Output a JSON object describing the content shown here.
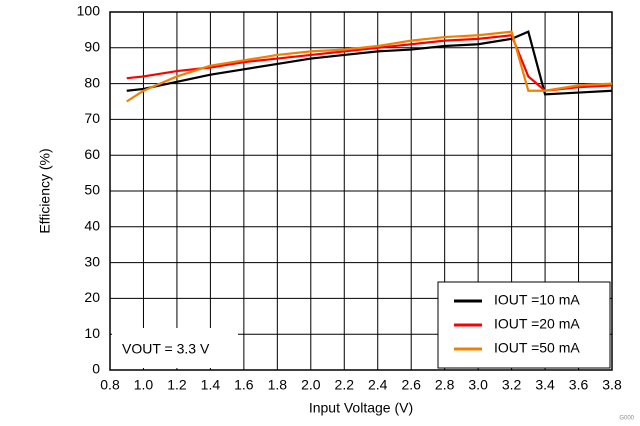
{
  "chart_data": {
    "type": "line",
    "xlabel": "Input Voltage (V)",
    "ylabel": "Efficiency (%)",
    "annotation": "VOUT = 3.3 V",
    "corner_note": "G000",
    "x": [
      0.9,
      1.0,
      1.2,
      1.4,
      1.6,
      1.8,
      2.0,
      2.2,
      2.4,
      2.6,
      2.8,
      3.0,
      3.2,
      3.3,
      3.4,
      3.6,
      3.8
    ],
    "series": [
      {
        "name": "IOUT =10 mA",
        "color": "#000000",
        "values": [
          78,
          78.5,
          80.5,
          82.5,
          84,
          85.5,
          87,
          88,
          89,
          89.5,
          90.5,
          91,
          92.5,
          94.5,
          77,
          77.5,
          78
        ]
      },
      {
        "name": "IOUT =20 mA",
        "color": "#ff0000",
        "values": [
          81.5,
          82,
          83.5,
          84.5,
          86,
          87,
          88,
          89,
          90,
          91,
          92,
          92.5,
          93.5,
          82,
          78,
          79,
          79.5
        ]
      },
      {
        "name": "IOUT =50 mA",
        "color": "#f08000",
        "values": [
          75,
          78,
          82,
          85,
          86.5,
          88,
          89,
          89.5,
          90.5,
          92,
          93,
          93.5,
          94.5,
          78,
          78,
          79.5,
          80
        ]
      }
    ],
    "xlim": [
      0.8,
      3.8
    ],
    "xticks": [
      0.8,
      {
        "value": 1,
        "label": "1.0"
      },
      1.2,
      1.4,
      1.6,
      1.8,
      {
        "value": 2,
        "label": "2.0"
      },
      2.2,
      2.4,
      2.6,
      2.8,
      {
        "value": 3,
        "label": "3.0"
      },
      3.2,
      3.4,
      3.6,
      3.8
    ],
    "ylim": [
      0,
      100
    ],
    "yticks": [
      0,
      10,
      20,
      30,
      40,
      50,
      60,
      70,
      80,
      90,
      100
    ],
    "grid": true,
    "legend": "lower right"
  }
}
